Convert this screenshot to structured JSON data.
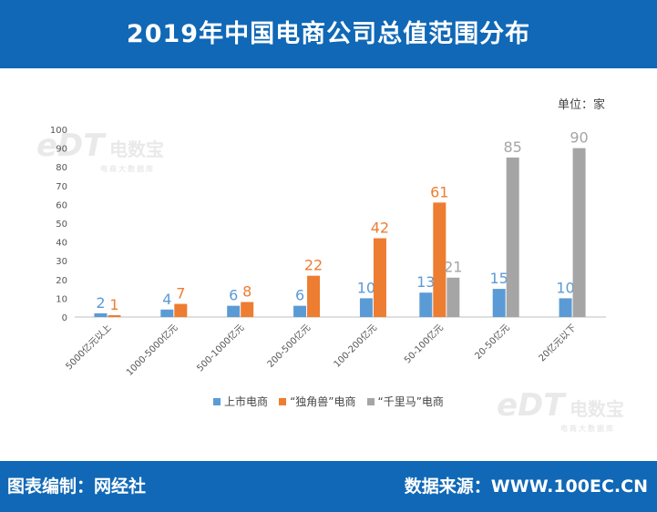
{
  "header": {
    "title": "2019年中国电商公司总值范围分布"
  },
  "unit_label": "单位：家",
  "footer": {
    "left": "图表编制：网经社",
    "right": "数据来源：WWW.100EC.CN"
  },
  "watermark": {
    "logo": "eDT",
    "name": "电数宝",
    "sub": "电商大数据库"
  },
  "colors": {
    "header_bg": "#1068b6",
    "listed": "#5b9bd5",
    "unicorn": "#ed7d31",
    "qianlima": "#a5a5a5"
  },
  "chart_data": {
    "type": "bar",
    "title": "2019年中国电商公司总值范围分布",
    "categories": [
      "5000亿元以上",
      "1000-5000亿元",
      "500-1000亿元",
      "200-500亿元",
      "100-200亿元",
      "50-100亿元",
      "20-50亿元",
      "20亿元以下"
    ],
    "series": [
      {
        "name": "上市电商",
        "values": [
          2,
          4,
          6,
          6,
          10,
          13,
          15,
          10
        ]
      },
      {
        "name": "“独角兽”电商",
        "values": [
          1,
          7,
          8,
          22,
          42,
          61,
          null,
          null
        ]
      },
      {
        "name": "“千里马”电商",
        "values": [
          null,
          null,
          null,
          null,
          null,
          21,
          85,
          90
        ]
      }
    ],
    "ylim": [
      0,
      100
    ],
    "yticks": [
      0,
      10,
      20,
      30,
      40,
      50,
      60,
      70,
      80,
      90,
      100
    ],
    "grid": false,
    "legend": "bottom"
  }
}
